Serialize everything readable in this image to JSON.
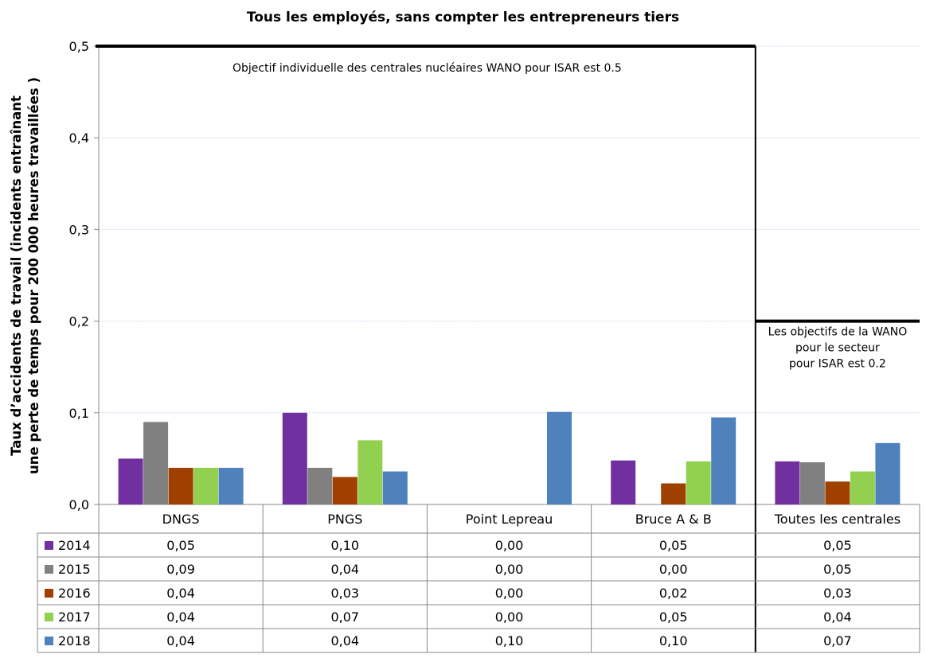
{
  "chart_data": {
    "type": "bar",
    "title": "Tous les employés, sans compter les entrepreneurs tiers",
    "ylabel_line1": "Taux d’accidents de travail (incidents entraînant",
    "ylabel_line2": "une perte de temps pour 200 000 heures travaillées )",
    "ylim": [
      0,
      0.5
    ],
    "yticks": [
      "0,0",
      "0,1",
      "0,2",
      "0,3",
      "0,4",
      "0,5"
    ],
    "categories": [
      "DNGS",
      "PNGS",
      "Point Lepreau",
      "Bruce A & B",
      "Toutes les centrales"
    ],
    "series": [
      {
        "name": "2014",
        "color": "#7030a0",
        "values": [
          0.05,
          0.1,
          0.0,
          0.048,
          0.047
        ],
        "labels": [
          "0,05",
          "0,10",
          "0,00",
          "0,05",
          "0,05"
        ]
      },
      {
        "name": "2015",
        "color": "#808080",
        "values": [
          0.09,
          0.04,
          0.0,
          0.0,
          0.046
        ],
        "labels": [
          "0,09",
          "0,04",
          "0,00",
          "0,00",
          "0,05"
        ]
      },
      {
        "name": "2016",
        "color": "#a04000",
        "values": [
          0.04,
          0.03,
          0.0,
          0.023,
          0.025
        ],
        "labels": [
          "0,04",
          "0,03",
          "0,00",
          "0,02",
          "0,03"
        ]
      },
      {
        "name": "2017",
        "color": "#92d050",
        "values": [
          0.04,
          0.07,
          0.0,
          0.047,
          0.036
        ],
        "labels": [
          "0,04",
          "0,07",
          "0,00",
          "0,05",
          "0,04"
        ]
      },
      {
        "name": "2018",
        "color": "#4f81bd",
        "values": [
          0.04,
          0.036,
          0.101,
          0.095,
          0.067
        ],
        "labels": [
          "0,04",
          "0,04",
          "0,10",
          "0,10",
          "0,07"
        ]
      }
    ],
    "target_lines": [
      {
        "value": 0.5,
        "from_category": 0,
        "to_category": 3,
        "label": "Objectif individuelle des centrales nucléaires WANO pour ISAR est 0.5"
      },
      {
        "value": 0.2,
        "from_category": 4,
        "to_category": 4,
        "label_lines": [
          "Les objectifs de la WANO",
          "pour le secteur",
          "pour ISAR est 0.2"
        ]
      }
    ],
    "grid": true,
    "legend": "table-below"
  }
}
